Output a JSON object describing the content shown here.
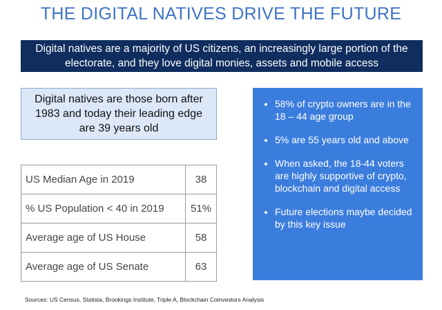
{
  "header": {
    "title": "THE DIGITAL NATIVES DRIVE THE FUTURE",
    "banner": "Digital natives are a majority of US citizens, an increasingly large portion of the electorate, and they love digital monies, assets and mobile access"
  },
  "definition": "Digital natives are those born after 1983 and today their leading edge are 39 years old",
  "table": {
    "rows": [
      [
        "US Median Age in 2019",
        "38"
      ],
      [
        "% US Population < 40 in 2019",
        "51%"
      ],
      [
        "Average age of US House",
        "58"
      ],
      [
        "Average age of US Senate",
        "63"
      ]
    ]
  },
  "bullets": [
    "58% of crypto owners are in the 18 – 44 age group",
    "5% are 55 years old and above",
    "When asked, the 18-44 voters are highly supportive of crypto, blockchain and digital access",
    "Future elections maybe decided by this key issue"
  ],
  "sources": "Sources: US Census, Statista, Brookings Institute, Triple A, Blockchain Coinvestors Analysis"
}
